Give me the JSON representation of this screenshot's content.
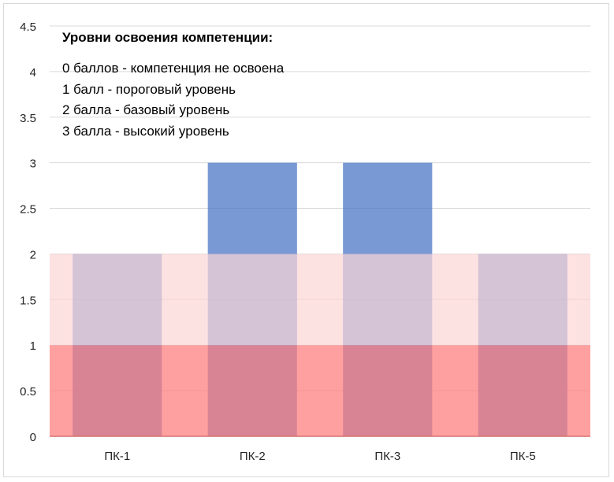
{
  "chart_data": {
    "type": "bar",
    "categories": [
      "ПК-1",
      "ПК-2",
      "ПК-3",
      "ПК-5"
    ],
    "values": [
      2,
      3,
      3,
      2
    ],
    "ylim": [
      0,
      4.5
    ],
    "y_ticks": [
      "0",
      "0.5",
      "1",
      "1.5",
      "2",
      "2.5",
      "3",
      "3.5",
      "4",
      "4.5"
    ],
    "grid": true,
    "bands": [
      {
        "from": 0,
        "to": 1,
        "color": "#ff7c7c",
        "opacity": 0.72
      },
      {
        "from": 1,
        "to": 2,
        "color": "#fcd5d5",
        "opacity": 0.7
      }
    ],
    "bar_color": "#4472c4",
    "annotation": {
      "title": "Уровни освоения компетенции:",
      "lines": [
        "0 баллов - компетенция не освоена",
        "1 балл - пороговый уровень",
        "2 балла - базовый уровень",
        "3 балла - высокий уровень"
      ]
    }
  }
}
